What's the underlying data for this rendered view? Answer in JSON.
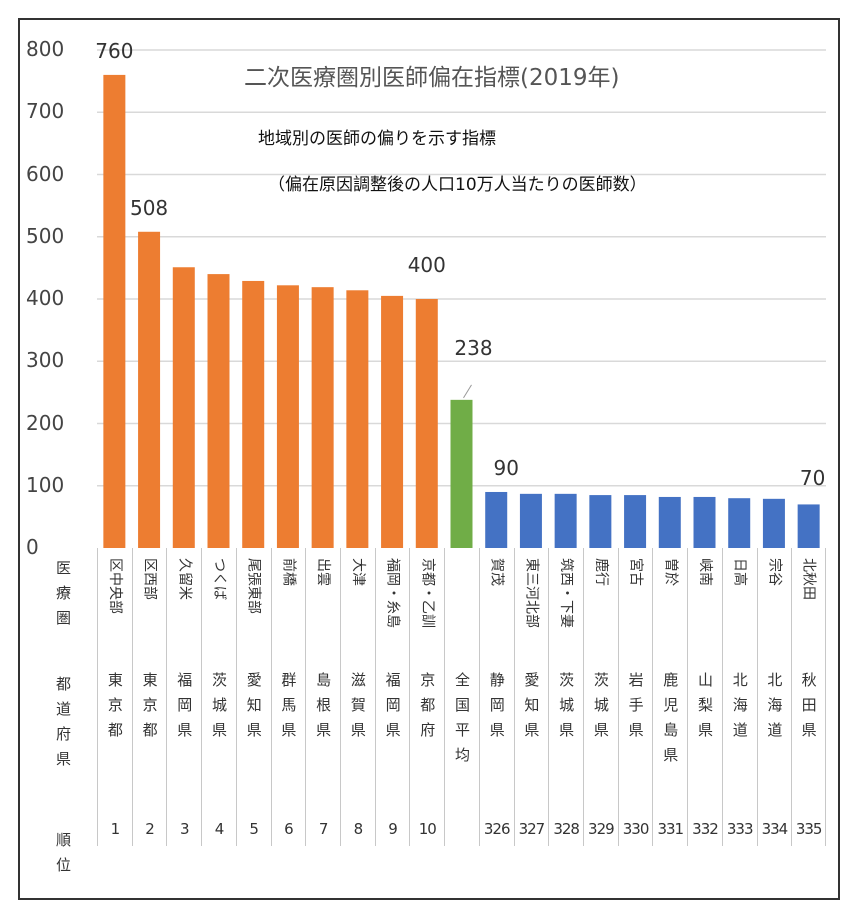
{
  "chart_data": {
    "type": "bar",
    "title": "二次医療圏別医師偏在指標(2019年)",
    "subtitle_1": "地域別の医師の偏りを示す指標",
    "subtitle_2": "（偏在原因調整後の人口10万人当たりの医師数）",
    "ylim": [
      0,
      800
    ],
    "yticks": [
      "0",
      "100",
      "200",
      "300",
      "400",
      "500",
      "600",
      "700",
      "800"
    ],
    "grid": true,
    "row_headers": {
      "region": "医療圏",
      "prefecture": "都道府県",
      "rank": "順位"
    },
    "categories": [
      "区中央部",
      "区西部",
      "久留米",
      "つくば",
      "尾張東部",
      "前橋",
      "出雲",
      "大津",
      "福岡・糸島",
      "京都・乙訓",
      "",
      "賀茂",
      "東三河北部",
      "筑西・下妻",
      "鹿行",
      "宮古",
      "曽於",
      "峡南",
      "日高",
      "宗谷",
      "北秋田"
    ],
    "prefectures": [
      "東京都",
      "東京都",
      "福岡県",
      "茨城県",
      "愛知県",
      "群馬県",
      "島根県",
      "滋賀県",
      "福岡県",
      "京都府",
      "全国平均",
      "静岡県",
      "愛知県",
      "茨城県",
      "茨城県",
      "岩手県",
      "鹿児島県",
      "山梨県",
      "北海道",
      "北海道",
      "秋田県"
    ],
    "ranks": [
      "1",
      "2",
      "3",
      "4",
      "5",
      "6",
      "7",
      "8",
      "9",
      "10",
      "",
      "326",
      "327",
      "328",
      "329",
      "330",
      "331",
      "332",
      "333",
      "334",
      "335"
    ],
    "values": [
      760,
      508,
      451,
      440,
      429,
      422,
      419,
      414,
      405,
      400,
      238,
      90,
      87,
      87,
      85,
      85,
      82,
      82,
      80,
      79,
      70
    ],
    "groups": [
      "top",
      "top",
      "top",
      "top",
      "top",
      "top",
      "top",
      "top",
      "top",
      "top",
      "average",
      "bottom",
      "bottom",
      "bottom",
      "bottom",
      "bottom",
      "bottom",
      "bottom",
      "bottom",
      "bottom",
      "bottom"
    ],
    "colors": {
      "top": "#ED7D31",
      "average": "#70AD47",
      "bottom": "#4472C4"
    },
    "data_labels": [
      {
        "index": 0,
        "text": "760"
      },
      {
        "index": 1,
        "text": "508"
      },
      {
        "index": 9,
        "text": "400"
      },
      {
        "index": 10,
        "text": "238"
      },
      {
        "index": 11,
        "text": "90"
      },
      {
        "index": 20,
        "text": "70"
      }
    ]
  }
}
